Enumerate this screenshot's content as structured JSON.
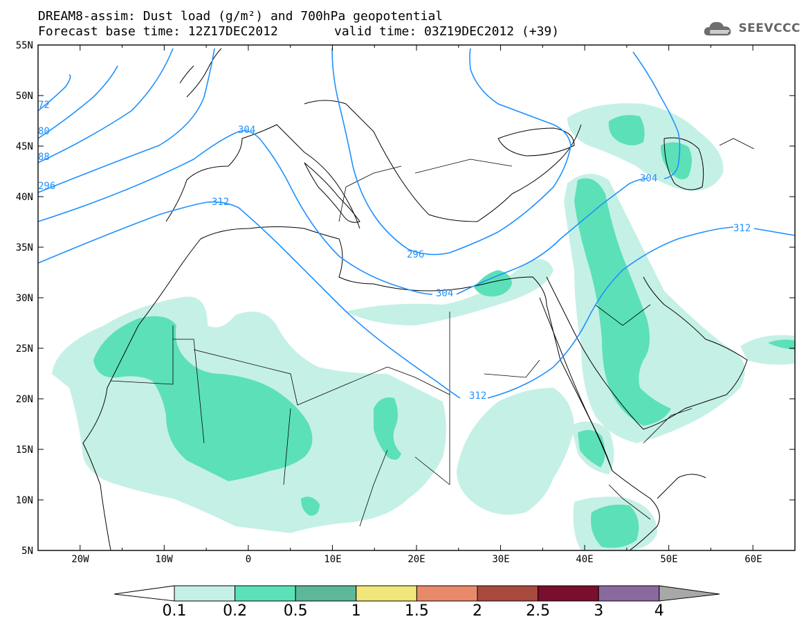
{
  "title_line1": "DREAM8-assim: Dust load (g/m²) and 700hPa geopotential",
  "title_line2a": "Forecast base time: 12Z17DEC2012",
  "title_line2b": "valid time: 03Z19DEC2012 (+39)",
  "logo_text": "SEEVCCC",
  "logo_icon": "cloud-logo-icon",
  "map": {
    "lon_range": [
      -25,
      65
    ],
    "lat_range": [
      5,
      55
    ],
    "lat_ticks": [
      "55N",
      "50N",
      "45N",
      "40N",
      "35N",
      "30N",
      "25N",
      "20N",
      "15N",
      "10N",
      "5N"
    ],
    "lon_ticks": [
      "20W",
      "10W",
      "0",
      "10E",
      "20E",
      "30E",
      "40E",
      "50E",
      "60E"
    ],
    "contour_labels": [
      "72",
      "80",
      "88",
      "296",
      "304",
      "312",
      "296",
      "304",
      "312",
      "304",
      "312"
    ],
    "contour_color": "#1e90ff"
  },
  "colorbar": {
    "labels": [
      "0.1",
      "0.2",
      "0.5",
      "1",
      "1.5",
      "2",
      "2.5",
      "3",
      "4"
    ],
    "colors": [
      "#c5f0e6",
      "#5ce0b8",
      "#5cb898",
      "#f0e67a",
      "#e88a6a",
      "#a84a3e",
      "#7a0e2e",
      "#8a6a9e",
      "#a8a8a8"
    ]
  }
}
